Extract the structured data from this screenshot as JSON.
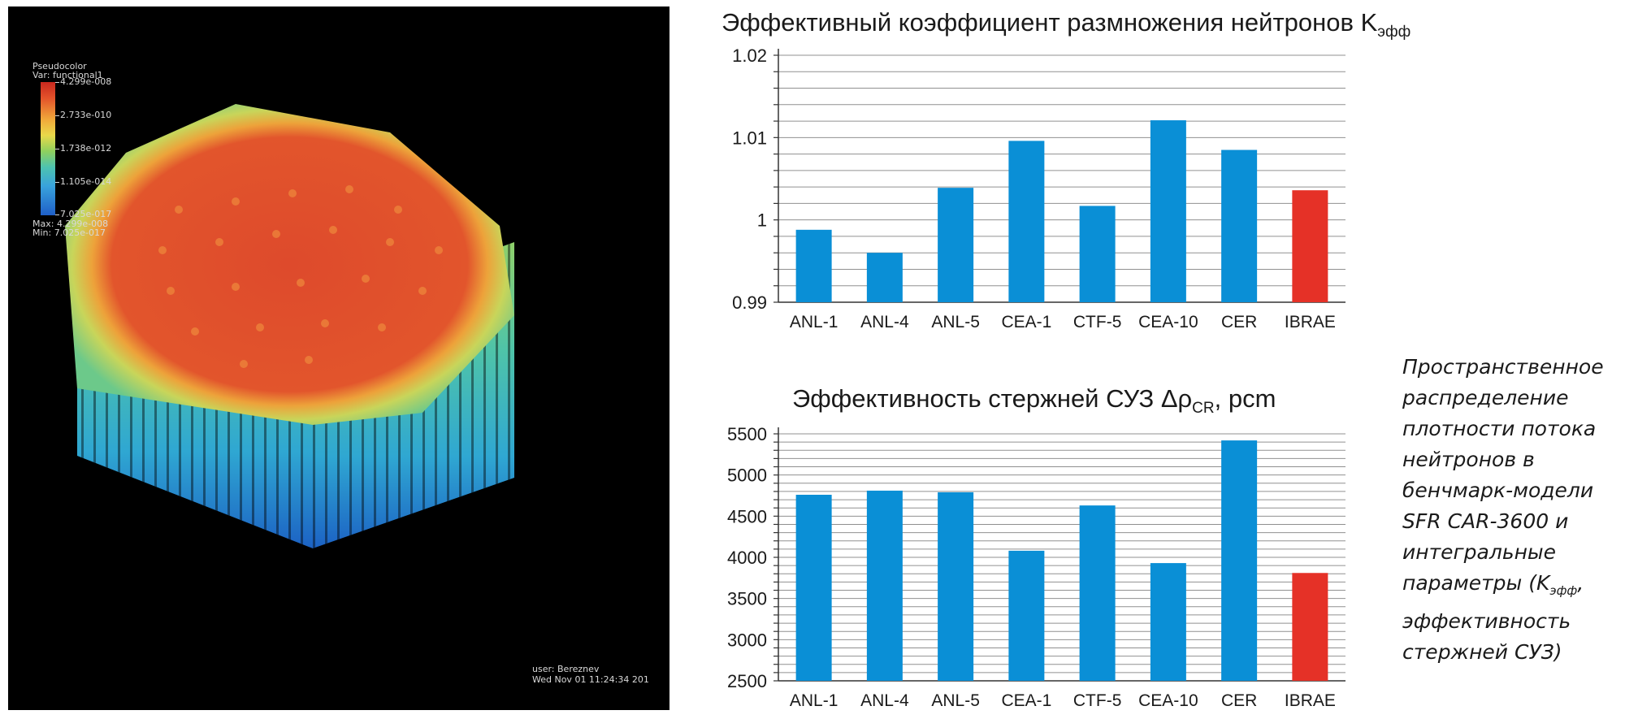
{
  "visualization": {
    "legend_title": "Pseudocolor",
    "legend_var": "Var: functional1",
    "colorbar_ticks": [
      "4.299e-008",
      "2.733e-010",
      "1.738e-012",
      "1.105e-014",
      "7.025e-017"
    ],
    "max_label": "Max: 4.299e-008",
    "min_label": "Min: 7.025e-017",
    "user_label": "user: Bereznev",
    "date_label": "Wed Nov 01 11:24:34 201"
  },
  "colors": {
    "bar_blue": "#0a8fd6",
    "bar_red": "#e53127",
    "grid": "#909090"
  },
  "chart_data": [
    {
      "type": "bar",
      "title": "Эффективный коэффициент размножения нейтронов K",
      "title_sub": "эфф",
      "categories": [
        "ANL-1",
        "ANL-4",
        "ANL-5",
        "CEA-1",
        "CTF-5",
        "CEA-10",
        "CER",
        "IBRAE"
      ],
      "values": [
        0.9988,
        0.996,
        1.0039,
        1.0096,
        1.0017,
        1.0121,
        1.0085,
        1.0036
      ],
      "highlight": "IBRAE",
      "ylim": [
        0.99,
        1.02
      ],
      "yticks": [
        "0.99",
        "1",
        "1.01",
        "1.02"
      ],
      "grid": true
    },
    {
      "type": "bar",
      "title_part1": "Эффективность стержней СУЗ Δρ",
      "title_sub": "CR",
      "title_part2": ", pcm",
      "categories": [
        "ANL-1",
        "ANL-4",
        "ANL-5",
        "CEA-1",
        "CTF-5",
        "CEA-10",
        "CER",
        "IBRAE"
      ],
      "values": [
        4760,
        4810,
        4790,
        4080,
        4630,
        3930,
        5420,
        3810
      ],
      "highlight": "IBRAE",
      "ylim": [
        2500,
        5500
      ],
      "yticks": [
        "2500",
        "3000",
        "3500",
        "4000",
        "4500",
        "5000",
        "5500"
      ],
      "grid": true
    }
  ],
  "caption": {
    "part1": "Пространственное распределение плотности потока нейтронов в бенчмарк-модели SFR CAR-3600 и интегральные параметры (K",
    "sub": "эфф",
    "part2": ", эффективность стержней СУЗ)"
  }
}
